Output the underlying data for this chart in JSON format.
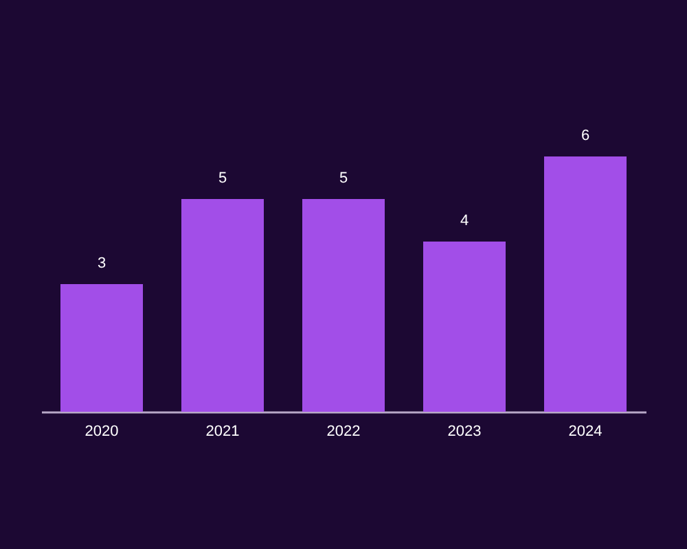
{
  "chart_data": {
    "type": "bar",
    "categories": [
      "2020",
      "2021",
      "2022",
      "2023",
      "2024"
    ],
    "values": [
      3,
      5,
      5,
      4,
      6
    ],
    "color": "#a24ee8",
    "data_labels": true,
    "grid": false
  }
}
